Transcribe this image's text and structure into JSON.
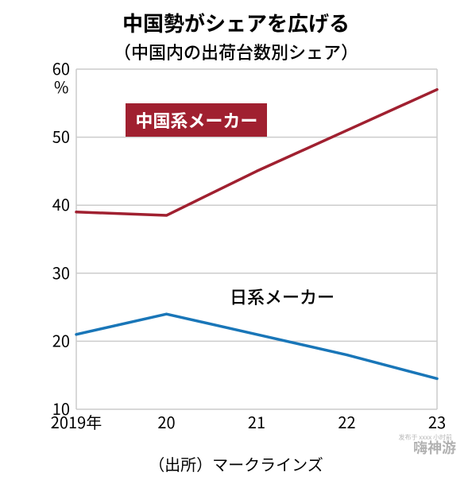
{
  "title": "中国勢がシェアを広げる",
  "subtitle": "（中国内の出荷台数別シェア）",
  "source": "（出所）マークラインズ",
  "watermark": "嗨神游",
  "chart": {
    "type": "line",
    "ylim": [
      10,
      60
    ],
    "ytick_step": 10,
    "yticks": [
      10,
      20,
      30,
      40,
      50,
      60
    ],
    "unit_label": "%",
    "xticks": [
      "2019年",
      "20",
      "21",
      "22",
      "23"
    ],
    "grid_color": "#cccccc",
    "background_color": "#ffffff",
    "series": [
      {
        "name": "china",
        "label": "中国系メーカー",
        "label_style": "box",
        "color": "#a02030",
        "line_width": 3.5,
        "values": [
          39,
          38.5,
          45,
          51,
          57
        ]
      },
      {
        "name": "japan",
        "label": "日系メーカー",
        "label_style": "plain",
        "color": "#1976b8",
        "line_width": 3.5,
        "values": [
          21,
          24,
          21,
          18,
          14.5
        ]
      }
    ]
  }
}
